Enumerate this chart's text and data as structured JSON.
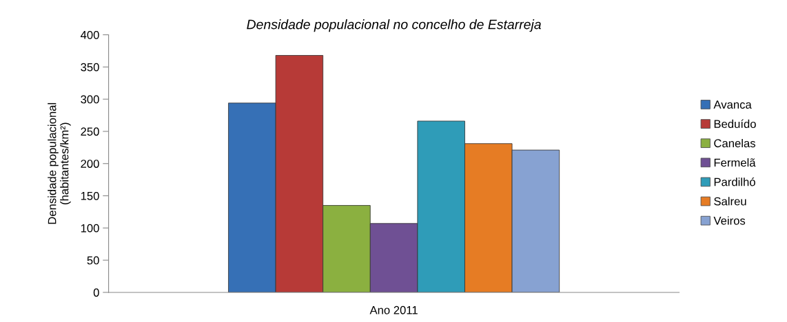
{
  "chart_data": {
    "type": "bar",
    "title": "Densidade populacional no concelho de Estarreja",
    "ylabel": "Densidade populacional\n(habitantes/km²)",
    "categories": [
      "Ano 2011"
    ],
    "series": [
      {
        "name": "Avanca",
        "color": "#3670b6",
        "values": [
          294
        ]
      },
      {
        "name": "Beduído",
        "color": "#b73a37",
        "values": [
          368
        ]
      },
      {
        "name": "Canelas",
        "color": "#8bb040",
        "values": [
          135
        ]
      },
      {
        "name": "Fermelã",
        "color": "#6f5094",
        "values": [
          107
        ]
      },
      {
        "name": "Pardilhó",
        "color": "#2f9cb8",
        "values": [
          266
        ]
      },
      {
        "name": "Salreu",
        "color": "#e67c24",
        "values": [
          231
        ]
      },
      {
        "name": "Veiros",
        "color": "#87a2d2",
        "values": [
          221
        ]
      }
    ],
    "ylim": [
      0,
      400
    ],
    "yticks": [
      0,
      50,
      100,
      150,
      200,
      250,
      300,
      350,
      400
    ],
    "grid": false,
    "legend": "right"
  }
}
